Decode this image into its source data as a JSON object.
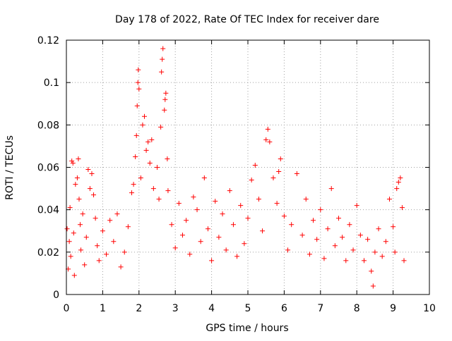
{
  "chart_data": {
    "type": "scatter",
    "title": "Day 178 of 2022, Rate Of TEC Index for receiver dare",
    "xlabel": "GPS time / hours",
    "ylabel": "ROTI / TECUs",
    "xlim": [
      0,
      10
    ],
    "ylim": [
      0,
      0.12
    ],
    "xticks": [
      0,
      1,
      2,
      3,
      4,
      5,
      6,
      7,
      8,
      9,
      10
    ],
    "yticks": [
      0,
      0.02,
      0.04,
      0.06,
      0.08,
      0.1,
      0.12
    ],
    "xtick_labels": [
      "0",
      "1",
      "2",
      "3",
      "4",
      "5",
      "6",
      "7",
      "8",
      "9",
      "10"
    ],
    "ytick_labels": [
      "0",
      "0.02",
      "0.04",
      "0.06",
      "0.08",
      "0.1",
      "0.12"
    ],
    "grid": true,
    "marker": "plus",
    "color": "#ff0000",
    "series": [
      {
        "points": [
          [
            0.02,
            0.031
          ],
          [
            0.05,
            0.012
          ],
          [
            0.08,
            0.025
          ],
          [
            0.1,
            0.041
          ],
          [
            0.12,
            0.018
          ],
          [
            0.15,
            0.063
          ],
          [
            0.18,
            0.062
          ],
          [
            0.2,
            0.029
          ],
          [
            0.22,
            0.009
          ],
          [
            0.25,
            0.052
          ],
          [
            0.3,
            0.055
          ],
          [
            0.33,
            0.064
          ],
          [
            0.35,
            0.045
          ],
          [
            0.38,
            0.033
          ],
          [
            0.4,
            0.021
          ],
          [
            0.45,
            0.038
          ],
          [
            0.5,
            0.014
          ],
          [
            0.55,
            0.027
          ],
          [
            0.6,
            0.059
          ],
          [
            0.65,
            0.05
          ],
          [
            0.7,
            0.057
          ],
          [
            0.75,
            0.047
          ],
          [
            0.8,
            0.036
          ],
          [
            0.85,
            0.023
          ],
          [
            0.9,
            0.016
          ],
          [
            1.0,
            0.03
          ],
          [
            1.1,
            0.019
          ],
          [
            1.2,
            0.035
          ],
          [
            1.3,
            0.025
          ],
          [
            1.4,
            0.038
          ],
          [
            1.5,
            0.013
          ],
          [
            1.6,
            0.02
          ],
          [
            1.7,
            0.032
          ],
          [
            1.8,
            0.048
          ],
          [
            1.85,
            0.052
          ],
          [
            1.9,
            0.065
          ],
          [
            1.93,
            0.075
          ],
          [
            1.95,
            0.089
          ],
          [
            1.97,
            0.1
          ],
          [
            1.98,
            0.106
          ],
          [
            2.0,
            0.097
          ],
          [
            2.05,
            0.055
          ],
          [
            2.1,
            0.08
          ],
          [
            2.15,
            0.084
          ],
          [
            2.2,
            0.068
          ],
          [
            2.25,
            0.072
          ],
          [
            2.3,
            0.062
          ],
          [
            2.35,
            0.073
          ],
          [
            2.4,
            0.05
          ],
          [
            2.5,
            0.06
          ],
          [
            2.55,
            0.045
          ],
          [
            2.6,
            0.079
          ],
          [
            2.62,
            0.105
          ],
          [
            2.64,
            0.111
          ],
          [
            2.66,
            0.116
          ],
          [
            2.7,
            0.087
          ],
          [
            2.72,
            0.092
          ],
          [
            2.74,
            0.095
          ],
          [
            2.78,
            0.064
          ],
          [
            2.8,
            0.049
          ],
          [
            2.9,
            0.033
          ],
          [
            3.0,
            0.022
          ],
          [
            3.1,
            0.043
          ],
          [
            3.2,
            0.028
          ],
          [
            3.3,
            0.035
          ],
          [
            3.4,
            0.019
          ],
          [
            3.5,
            0.046
          ],
          [
            3.6,
            0.04
          ],
          [
            3.7,
            0.025
          ],
          [
            3.8,
            0.055
          ],
          [
            3.9,
            0.031
          ],
          [
            4.0,
            0.016
          ],
          [
            4.1,
            0.044
          ],
          [
            4.2,
            0.027
          ],
          [
            4.3,
            0.038
          ],
          [
            4.4,
            0.021
          ],
          [
            4.5,
            0.049
          ],
          [
            4.6,
            0.033
          ],
          [
            4.7,
            0.018
          ],
          [
            4.8,
            0.042
          ],
          [
            4.9,
            0.024
          ],
          [
            5.0,
            0.036
          ],
          [
            5.1,
            0.054
          ],
          [
            5.2,
            0.061
          ],
          [
            5.3,
            0.045
          ],
          [
            5.4,
            0.03
          ],
          [
            5.5,
            0.073
          ],
          [
            5.55,
            0.078
          ],
          [
            5.6,
            0.072
          ],
          [
            5.7,
            0.055
          ],
          [
            5.8,
            0.043
          ],
          [
            5.85,
            0.058
          ],
          [
            5.9,
            0.064
          ],
          [
            6.0,
            0.037
          ],
          [
            6.1,
            0.021
          ],
          [
            6.2,
            0.033
          ],
          [
            6.35,
            0.057
          ],
          [
            6.5,
            0.028
          ],
          [
            6.6,
            0.045
          ],
          [
            6.7,
            0.019
          ],
          [
            6.8,
            0.035
          ],
          [
            6.9,
            0.026
          ],
          [
            7.0,
            0.04
          ],
          [
            7.1,
            0.017
          ],
          [
            7.2,
            0.031
          ],
          [
            7.3,
            0.05
          ],
          [
            7.4,
            0.023
          ],
          [
            7.5,
            0.036
          ],
          [
            7.6,
            0.027
          ],
          [
            7.7,
            0.016
          ],
          [
            7.8,
            0.033
          ],
          [
            7.9,
            0.021
          ],
          [
            8.0,
            0.042
          ],
          [
            8.1,
            0.028
          ],
          [
            8.2,
            0.016
          ],
          [
            8.3,
            0.026
          ],
          [
            8.4,
            0.011
          ],
          [
            8.45,
            0.004
          ],
          [
            8.5,
            0.02
          ],
          [
            8.6,
            0.031
          ],
          [
            8.7,
            0.018
          ],
          [
            8.8,
            0.025
          ],
          [
            8.9,
            0.045
          ],
          [
            9.0,
            0.032
          ],
          [
            9.05,
            0.02
          ],
          [
            9.1,
            0.05
          ],
          [
            9.15,
            0.053
          ],
          [
            9.2,
            0.055
          ],
          [
            9.25,
            0.041
          ],
          [
            9.3,
            0.016
          ]
        ]
      }
    ]
  }
}
